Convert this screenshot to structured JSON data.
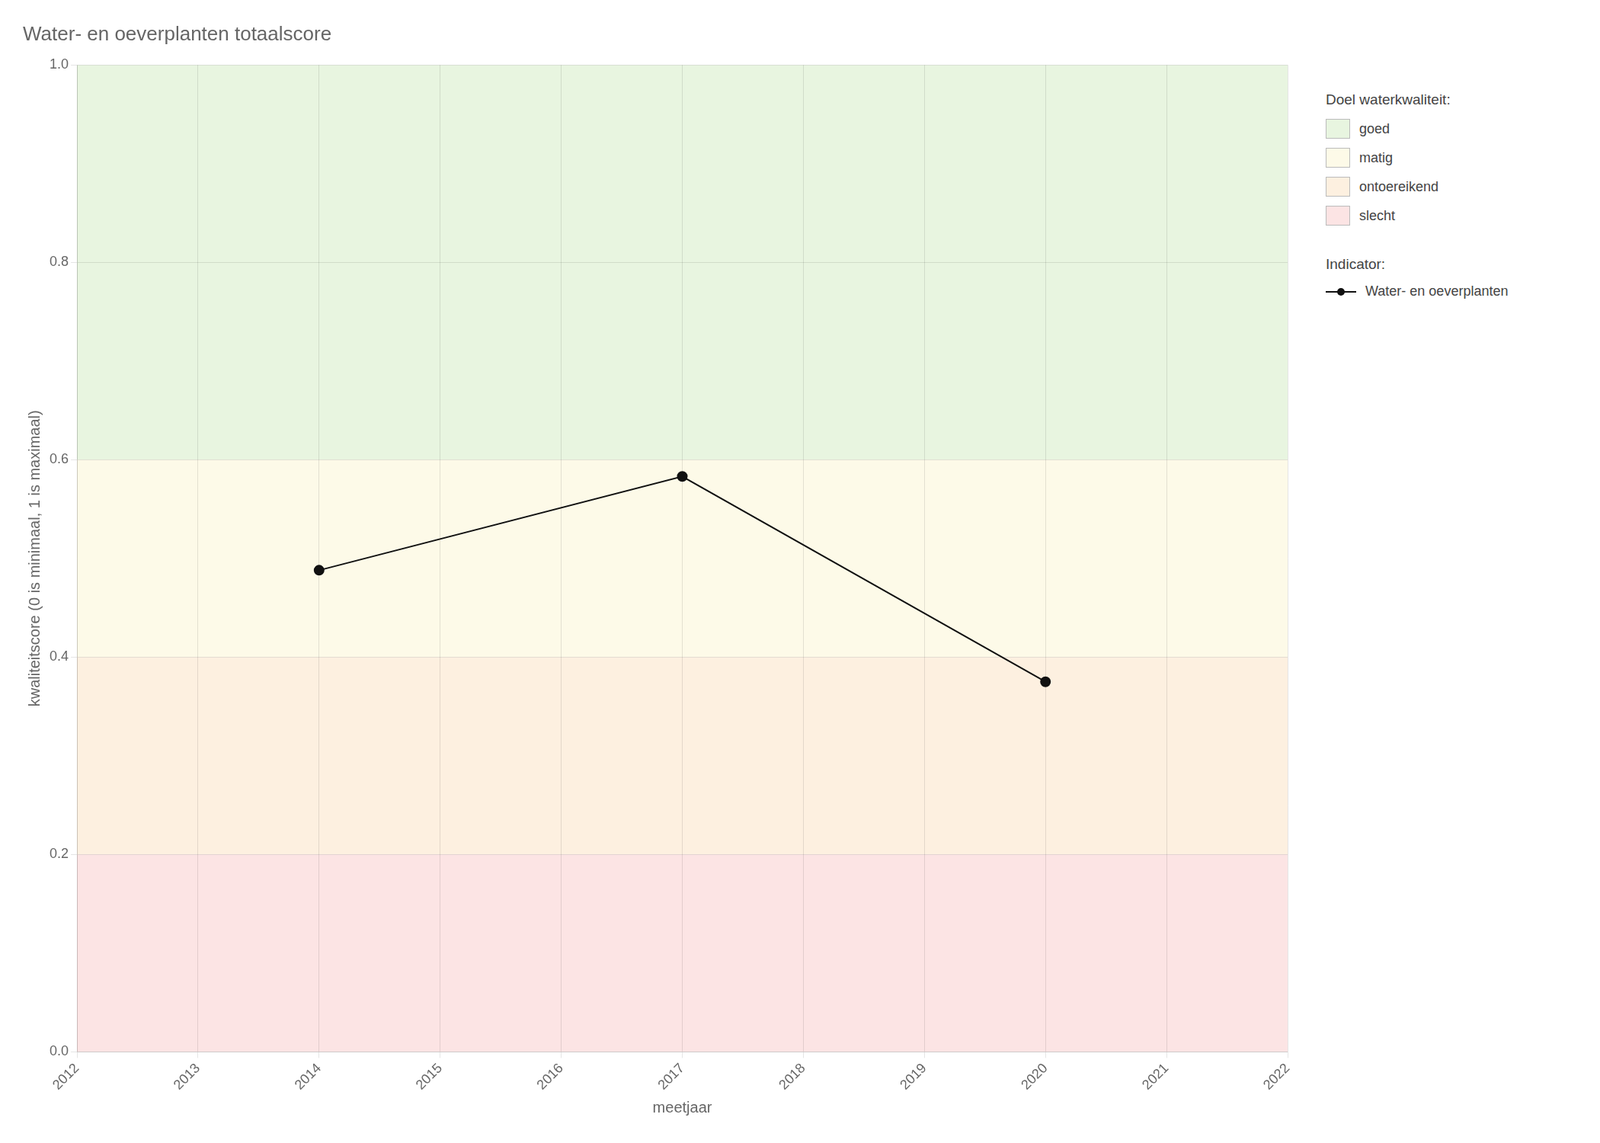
{
  "chart_data": {
    "type": "line",
    "title": "Water- en oeverplanten totaalscore",
    "x_label": "meetjaar",
    "y_label": "kwaliteitscore (0 is minimaal, 1 is maximaal)",
    "x": [
      2014,
      2017,
      2020
    ],
    "series": [
      {
        "name": "Water- en oeverplanten",
        "color": "#111111",
        "values": [
          0.488,
          0.583,
          0.375
        ],
        "marker": "circle",
        "line_style": "solid"
      }
    ],
    "xlim": [
      2012,
      2022
    ],
    "xticks": [
      2012,
      2013,
      2014,
      2015,
      2016,
      2017,
      2018,
      2019,
      2020,
      2021,
      2022
    ],
    "ylim": [
      0.0,
      1.0
    ],
    "yticks": [
      {
        "value": 0.0,
        "label": "0.0"
      },
      0.2,
      0.4,
      0.6,
      0.8,
      {
        "value": 1.0,
        "label": "1.0"
      }
    ],
    "grid": true,
    "legend": "right",
    "zones_title": "Doel waterkwaliteit:",
    "series_title": "Indicator:",
    "zones": [
      {
        "ymin": 0.6,
        "ymax": 1.0,
        "color": "#e8f5e0",
        "label": "goed"
      },
      {
        "ymin": 0.4,
        "ymax": 0.6,
        "color": "#fdfae8",
        "label": "matig"
      },
      {
        "ymin": 0.2,
        "ymax": 0.4,
        "color": "#fdf0e0",
        "label": "ontoereikend"
      },
      {
        "ymin": 0.0,
        "ymax": 0.2,
        "color": "#fce4e4",
        "label": "slecht"
      }
    ]
  }
}
